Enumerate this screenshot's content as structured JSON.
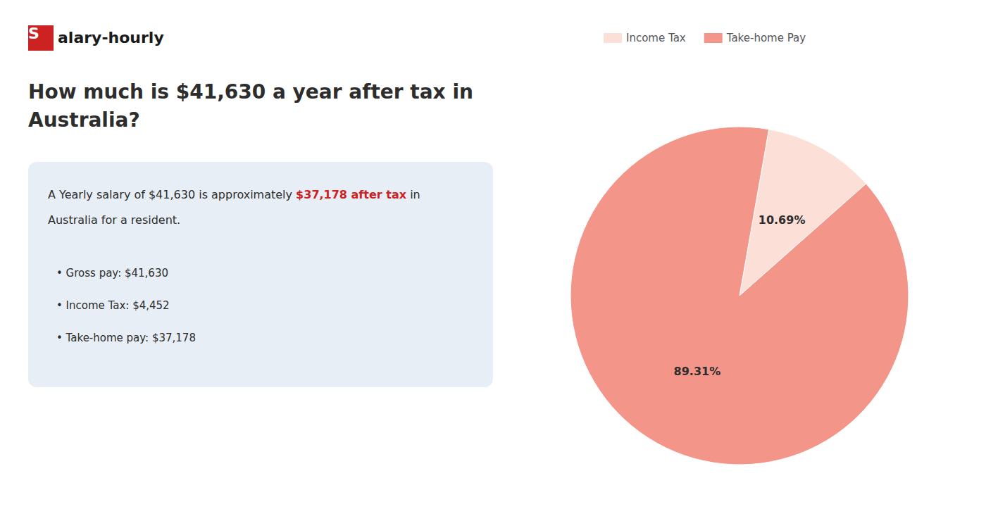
{
  "chart_data": {
    "type": "pie",
    "title": "How much is $41,630 a year after tax in\nAustralia?",
    "categories": [
      "Income Tax",
      "Take-home Pay"
    ],
    "values": [
      10.69,
      89.31
    ],
    "value_labels": [
      "10.69%",
      "89.31%"
    ],
    "colors": [
      "#fce0d8",
      "#f4958a"
    ],
    "data_labels": true,
    "legend": "top",
    "annotations": [
      {
        "text": "S",
        "color": "#cc2222"
      },
      {
        "text": "alary-hourly"
      },
      {
        "text": "A Yearly salary of $41,630 is approximately "
      },
      {
        "text": "$37,178 after tax",
        "color": "#cc2222"
      },
      {
        "text": " in"
      },
      {
        "text": "Australia for a resident."
      },
      {
        "text": "• Gross pay: $41,630"
      },
      {
        "text": "• Income Tax: $4,452"
      },
      {
        "text": "• Take-home pay: $37,178"
      }
    ]
  }
}
